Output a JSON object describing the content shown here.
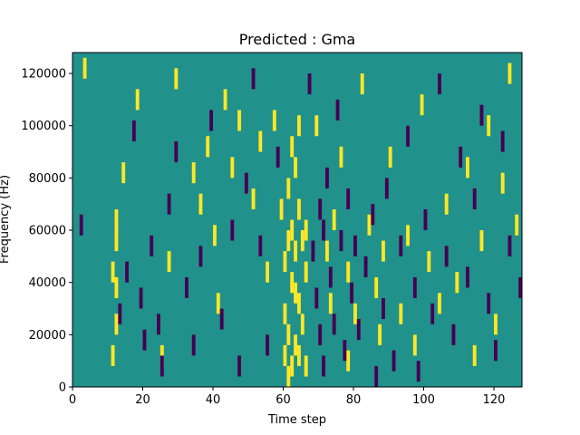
{
  "chart_data": {
    "type": "heatmap",
    "title": "Predicted : Gma",
    "xlabel": "Time step",
    "ylabel": "Frequency (Hz)",
    "xlim": [
      0,
      128
    ],
    "ylim": [
      0,
      128000
    ],
    "xticks": [
      0,
      20,
      40,
      60,
      80,
      100,
      120
    ],
    "yticks": [
      0,
      20000,
      40000,
      60000,
      80000,
      100000,
      120000
    ],
    "xtick_labels": [
      "0",
      "20",
      "40",
      "60",
      "80",
      "100",
      "120"
    ],
    "ytick_labels": [
      "0",
      "20000",
      "40000",
      "60000",
      "80000",
      "100000",
      "120000"
    ],
    "grid": false,
    "colors": {
      "background": "#21918c",
      "high": "#fde725",
      "low": "#440154"
    },
    "levels": [
      "low",
      "background",
      "high"
    ],
    "cells_high": [
      [
        3,
        124000
      ],
      [
        11,
        46000
      ],
      [
        11,
        14000
      ],
      [
        12,
        66000
      ],
      [
        12,
        58000
      ],
      [
        12,
        40000
      ],
      [
        12,
        26000
      ],
      [
        14,
        84000
      ],
      [
        18,
        112000
      ],
      [
        25,
        14000
      ],
      [
        27,
        50000
      ],
      [
        29,
        120000
      ],
      [
        34,
        84000
      ],
      [
        36,
        72000
      ],
      [
        38,
        94000
      ],
      [
        40,
        60000
      ],
      [
        41,
        34000
      ],
      [
        43,
        112000
      ],
      [
        45,
        86000
      ],
      [
        47,
        104000
      ],
      [
        51,
        74000
      ],
      [
        53,
        96000
      ],
      [
        55,
        46000
      ],
      [
        57,
        104000
      ],
      [
        59,
        70000
      ],
      [
        60,
        50000
      ],
      [
        60,
        30000
      ],
      [
        60,
        14000
      ],
      [
        61,
        78000
      ],
      [
        61,
        58000
      ],
      [
        61,
        22000
      ],
      [
        61,
        6000
      ],
      [
        62,
        94000
      ],
      [
        62,
        62000
      ],
      [
        62,
        42000
      ],
      [
        62,
        10000
      ],
      [
        63,
        86000
      ],
      [
        63,
        54000
      ],
      [
        63,
        38000
      ],
      [
        63,
        18000
      ],
      [
        64,
        102000
      ],
      [
        64,
        70000
      ],
      [
        64,
        34000
      ],
      [
        64,
        14000
      ],
      [
        65,
        58000
      ],
      [
        65,
        26000
      ],
      [
        66,
        62000
      ],
      [
        66,
        46000
      ],
      [
        66,
        10000
      ],
      [
        69,
        102000
      ],
      [
        72,
        54000
      ],
      [
        73,
        34000
      ],
      [
        74,
        66000
      ],
      [
        76,
        90000
      ],
      [
        78,
        46000
      ],
      [
        78,
        12000
      ],
      [
        80,
        30000
      ],
      [
        82,
        118000
      ],
      [
        84,
        64000
      ],
      [
        86,
        40000
      ],
      [
        87,
        22000
      ],
      [
        88,
        54000
      ],
      [
        90,
        90000
      ],
      [
        93,
        30000
      ],
      [
        95,
        60000
      ],
      [
        97,
        18000
      ],
      [
        99,
        110000
      ],
      [
        101,
        50000
      ],
      [
        104,
        34000
      ],
      [
        106,
        72000
      ],
      [
        109,
        42000
      ],
      [
        112,
        86000
      ],
      [
        114,
        14000
      ],
      [
        116,
        58000
      ],
      [
        118,
        102000
      ],
      [
        120,
        26000
      ],
      [
        122,
        80000
      ],
      [
        124,
        122000
      ],
      [
        126,
        64000
      ]
    ],
    "cells_low": [
      [
        2,
        64000
      ],
      [
        13,
        30000
      ],
      [
        15,
        46000
      ],
      [
        17,
        100000
      ],
      [
        19,
        36000
      ],
      [
        20,
        20000
      ],
      [
        22,
        56000
      ],
      [
        24,
        26000
      ],
      [
        25,
        10000
      ],
      [
        27,
        72000
      ],
      [
        29,
        92000
      ],
      [
        32,
        40000
      ],
      [
        34,
        18000
      ],
      [
        36,
        52000
      ],
      [
        39,
        104000
      ],
      [
        42,
        28000
      ],
      [
        45,
        62000
      ],
      [
        47,
        10000
      ],
      [
        49,
        80000
      ],
      [
        51,
        120000
      ],
      [
        53,
        56000
      ],
      [
        55,
        18000
      ],
      [
        58,
        90000
      ],
      [
        67,
        118000
      ],
      [
        68,
        54000
      ],
      [
        69,
        36000
      ],
      [
        70,
        70000
      ],
      [
        70,
        22000
      ],
      [
        71,
        62000
      ],
      [
        71,
        10000
      ],
      [
        72,
        82000
      ],
      [
        73,
        44000
      ],
      [
        74,
        26000
      ],
      [
        75,
        108000
      ],
      [
        76,
        58000
      ],
      [
        77,
        16000
      ],
      [
        78,
        74000
      ],
      [
        79,
        38000
      ],
      [
        80,
        56000
      ],
      [
        81,
        24000
      ],
      [
        83,
        48000
      ],
      [
        85,
        68000
      ],
      [
        86,
        6000
      ],
      [
        88,
        32000
      ],
      [
        89,
        78000
      ],
      [
        91,
        12000
      ],
      [
        93,
        56000
      ],
      [
        95,
        98000
      ],
      [
        97,
        40000
      ],
      [
        98,
        8000
      ],
      [
        100,
        66000
      ],
      [
        102,
        30000
      ],
      [
        104,
        118000
      ],
      [
        106,
        52000
      ],
      [
        108,
        22000
      ],
      [
        110,
        90000
      ],
      [
        112,
        44000
      ],
      [
        114,
        74000
      ],
      [
        116,
        106000
      ],
      [
        118,
        34000
      ],
      [
        120,
        16000
      ],
      [
        122,
        96000
      ],
      [
        124,
        56000
      ],
      [
        127,
        40000
      ]
    ]
  }
}
